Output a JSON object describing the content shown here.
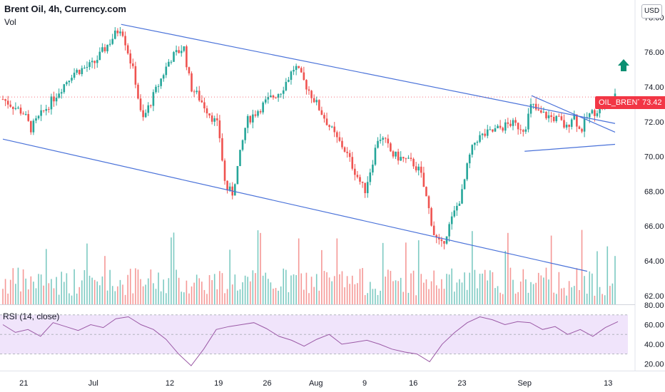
{
  "header": {
    "title": "Brent Oil, 4h, Currency.com",
    "vol_label": "Vol"
  },
  "currency_badge": "USD",
  "last_price": {
    "symbol": "OIL_BRENT",
    "value": "73.42"
  },
  "rsi": {
    "label": "RSI (14, close)"
  },
  "colors": {
    "up": "#26a69a",
    "down": "#ef5350",
    "trend": "#4a72d9",
    "rsi_line": "#9b5aa6",
    "rsi_band": "#f0e4fb",
    "arrow": "#0b8f72",
    "tag": "#f23645"
  },
  "chart_data": [
    {
      "type": "candlestick",
      "title": "Brent Oil, 4h, Currency.com",
      "ylim": [
        61.5,
        79
      ],
      "yticks": [
        62,
        64,
        66,
        68,
        70,
        72,
        74,
        76,
        78
      ],
      "xticks": [
        "21",
        "Jul",
        "12",
        "19",
        "26",
        "Aug",
        "9",
        "16",
        "23",
        "Sep",
        "13"
      ],
      "close_series": [
        {
          "date": "Jun 18",
          "close": 73.3
        },
        {
          "date": "Jun 21",
          "close": 72.5
        },
        {
          "date": "Jun 22",
          "close": 71.6
        },
        {
          "date": "Jun 25",
          "close": 73.2
        },
        {
          "date": "Jun 28",
          "close": 74.8
        },
        {
          "date": "Jul 1",
          "close": 75.3
        },
        {
          "date": "Jul 5",
          "close": 77.5
        },
        {
          "date": "Jul 7",
          "close": 74.5
        },
        {
          "date": "Jul 8",
          "close": 72.0
        },
        {
          "date": "Jul 12",
          "close": 75.6
        },
        {
          "date": "Jul 14",
          "close": 76.3
        },
        {
          "date": "Jul 15",
          "close": 74.0
        },
        {
          "date": "Jul 16",
          "close": 73.5
        },
        {
          "date": "Jul 19",
          "close": 71.7
        },
        {
          "date": "Jul 20",
          "close": 68.2
        },
        {
          "date": "Jul 21",
          "close": 67.9
        },
        {
          "date": "Jul 22",
          "close": 69.9
        },
        {
          "date": "Jul 23",
          "close": 72.0
        },
        {
          "date": "Jul 26",
          "close": 73.2
        },
        {
          "date": "Jul 28",
          "close": 73.8
        },
        {
          "date": "Jul 30",
          "close": 75.2
        },
        {
          "date": "Aug 2",
          "close": 73.1
        },
        {
          "date": "Aug 3",
          "close": 72.4
        },
        {
          "date": "Aug 5",
          "close": 71.0
        },
        {
          "date": "Aug 6",
          "close": 70.5
        },
        {
          "date": "Aug 9",
          "close": 68.0
        },
        {
          "date": "Aug 10",
          "close": 69.5
        },
        {
          "date": "Aug 11",
          "close": 71.2
        },
        {
          "date": "Aug 12",
          "close": 70.8
        },
        {
          "date": "Aug 13",
          "close": 70.1
        },
        {
          "date": "Aug 16",
          "close": 69.6
        },
        {
          "date": "Aug 17",
          "close": 69.1
        },
        {
          "date": "Aug 18",
          "close": 67.4
        },
        {
          "date": "Aug 19",
          "close": 65.5
        },
        {
          "date": "Aug 20",
          "close": 64.8
        },
        {
          "date": "Aug 23",
          "close": 67.9
        },
        {
          "date": "Aug 24",
          "close": 69.9
        },
        {
          "date": "Aug 25",
          "close": 71.0
        },
        {
          "date": "Aug 26",
          "close": 71.2
        },
        {
          "date": "Aug 30",
          "close": 71.9
        },
        {
          "date": "Sep 1",
          "close": 71.6
        },
        {
          "date": "Sep 2",
          "close": 73.0
        },
        {
          "date": "Sep 3",
          "close": 72.5
        },
        {
          "date": "Sep 6",
          "close": 72.1
        },
        {
          "date": "Sep 7",
          "close": 71.6
        },
        {
          "date": "Sep 8",
          "close": 72.5
        },
        {
          "date": "Sep 9",
          "close": 71.4
        },
        {
          "date": "Sep 10",
          "close": 72.3
        },
        {
          "date": "Sep 13",
          "close": 73.1
        },
        {
          "date": "Sep 14",
          "close": 73.42
        }
      ],
      "last_price": 73.42,
      "trendlines": [
        {
          "name": "channel upper",
          "from": {
            "date": "Jul 5",
            "price": 77.6
          },
          "to": {
            "date": "Sep 14",
            "price": 71.9
          }
        },
        {
          "name": "channel lower",
          "from": {
            "date": "Jun 18",
            "price": 71.0
          },
          "to": {
            "date": "Sep 10",
            "price": 63.4
          }
        },
        {
          "name": "triangle upper",
          "from": {
            "date": "Sep 2",
            "price": 73.5
          },
          "to": {
            "date": "Sep 14",
            "price": 71.4
          }
        },
        {
          "name": "triangle lower",
          "from": {
            "date": "Sep 1",
            "price": 70.3
          },
          "to": {
            "date": "Sep 14",
            "price": 70.7
          }
        }
      ],
      "annotation": "up-arrow"
    },
    {
      "type": "line",
      "title": "RSI (14, close)",
      "ylim": [
        13,
        80
      ],
      "yticks": [
        20,
        40,
        60,
        80
      ],
      "band": [
        30,
        70
      ],
      "values": [
        60,
        52,
        55,
        48,
        62,
        58,
        54,
        60,
        57,
        66,
        68,
        60,
        55,
        45,
        30,
        18,
        35,
        55,
        58,
        60,
        62,
        56,
        48,
        44,
        38,
        45,
        50,
        40,
        42,
        44,
        40,
        35,
        32,
        30,
        22,
        40,
        52,
        62,
        68,
        65,
        60,
        63,
        62,
        55,
        58,
        50,
        55,
        48,
        57,
        63
      ]
    }
  ]
}
